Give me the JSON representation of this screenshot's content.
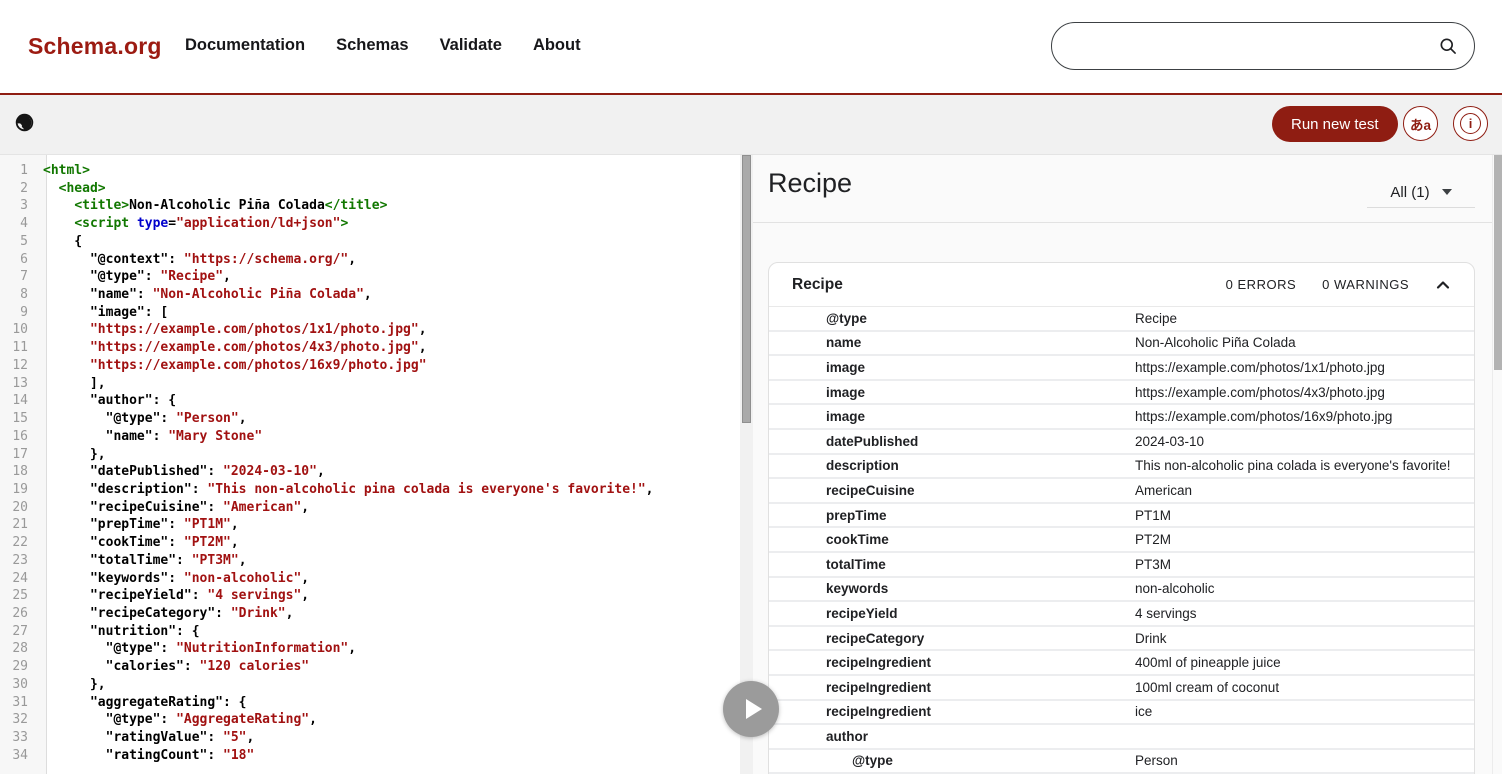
{
  "colors": {
    "accent_red": "#8f1d12",
    "logo_red": "#9c1b12",
    "toolbar_gray": "#f1f1f1",
    "results_bg": "#fafafa",
    "code_tag_green": "#117700",
    "code_attr_blue": "#0000cc",
    "code_string_red": "#a11111"
  },
  "header": {
    "logo": "Schema.org",
    "nav_items": [
      "Documentation",
      "Schemas",
      "Validate",
      "About"
    ],
    "search": {
      "value": ""
    }
  },
  "toolbar": {
    "run_button_label": "Run new test",
    "language_button_label": "あa",
    "info_button_label": "i",
    "icons": [
      "globe-icon",
      "search-icon",
      "language-icon",
      "info-icon"
    ]
  },
  "editor": {
    "visible_line_count": 34,
    "lines": [
      [
        [
          "t",
          "<html>"
        ]
      ],
      [
        [
          "p",
          "  "
        ],
        [
          "t",
          "<head>"
        ]
      ],
      [
        [
          "p",
          "    "
        ],
        [
          "t",
          "<title>"
        ],
        [
          "p",
          "Non-Alcoholic Piña Colada"
        ],
        [
          "t",
          "</title>"
        ]
      ],
      [
        [
          "p",
          "    "
        ],
        [
          "t",
          "<script"
        ],
        [
          "p",
          " "
        ],
        [
          "a",
          "type"
        ],
        [
          "p",
          "="
        ],
        [
          "s",
          "\"application/ld+json\""
        ],
        [
          "t",
          ">"
        ]
      ],
      [
        [
          "p",
          "    {"
        ]
      ],
      [
        [
          "p",
          "      \"@context\": "
        ],
        [
          "s",
          "\"https://schema.org/\""
        ],
        [
          "p",
          ","
        ]
      ],
      [
        [
          "p",
          "      \"@type\": "
        ],
        [
          "s",
          "\"Recipe\""
        ],
        [
          "p",
          ","
        ]
      ],
      [
        [
          "p",
          "      \"name\": "
        ],
        [
          "s",
          "\"Non-Alcoholic Piña Colada\""
        ],
        [
          "p",
          ","
        ]
      ],
      [
        [
          "p",
          "      \"image\": ["
        ]
      ],
      [
        [
          "p",
          "      "
        ],
        [
          "s",
          "\"https://example.com/photos/1x1/photo.jpg\""
        ],
        [
          "p",
          ","
        ]
      ],
      [
        [
          "p",
          "      "
        ],
        [
          "s",
          "\"https://example.com/photos/4x3/photo.jpg\""
        ],
        [
          "p",
          ","
        ]
      ],
      [
        [
          "p",
          "      "
        ],
        [
          "s",
          "\"https://example.com/photos/16x9/photo.jpg\""
        ]
      ],
      [
        [
          "p",
          "      ],"
        ]
      ],
      [
        [
          "p",
          "      \"author\": {"
        ]
      ],
      [
        [
          "p",
          "        \"@type\": "
        ],
        [
          "s",
          "\"Person\""
        ],
        [
          "p",
          ","
        ]
      ],
      [
        [
          "p",
          "        \"name\": "
        ],
        [
          "s",
          "\"Mary Stone\""
        ]
      ],
      [
        [
          "p",
          "      },"
        ]
      ],
      [
        [
          "p",
          "      \"datePublished\": "
        ],
        [
          "s",
          "\"2024-03-10\""
        ],
        [
          "p",
          ","
        ]
      ],
      [
        [
          "p",
          "      \"description\": "
        ],
        [
          "s",
          "\"This non-alcoholic pina colada is everyone's favorite!\""
        ],
        [
          "p",
          ","
        ]
      ],
      [
        [
          "p",
          "      \"recipeCuisine\": "
        ],
        [
          "s",
          "\"American\""
        ],
        [
          "p",
          ","
        ]
      ],
      [
        [
          "p",
          "      \"prepTime\": "
        ],
        [
          "s",
          "\"PT1M\""
        ],
        [
          "p",
          ","
        ]
      ],
      [
        [
          "p",
          "      \"cookTime\": "
        ],
        [
          "s",
          "\"PT2M\""
        ],
        [
          "p",
          ","
        ]
      ],
      [
        [
          "p",
          "      \"totalTime\": "
        ],
        [
          "s",
          "\"PT3M\""
        ],
        [
          "p",
          ","
        ]
      ],
      [
        [
          "p",
          "      \"keywords\": "
        ],
        [
          "s",
          "\"non-alcoholic\""
        ],
        [
          "p",
          ","
        ]
      ],
      [
        [
          "p",
          "      \"recipeYield\": "
        ],
        [
          "s",
          "\"4 servings\""
        ],
        [
          "p",
          ","
        ]
      ],
      [
        [
          "p",
          "      \"recipeCategory\": "
        ],
        [
          "s",
          "\"Drink\""
        ],
        [
          "p",
          ","
        ]
      ],
      [
        [
          "p",
          "      \"nutrition\": {"
        ]
      ],
      [
        [
          "p",
          "        \"@type\": "
        ],
        [
          "s",
          "\"NutritionInformation\""
        ],
        [
          "p",
          ","
        ]
      ],
      [
        [
          "p",
          "        \"calories\": "
        ],
        [
          "s",
          "\"120 calories\""
        ]
      ],
      [
        [
          "p",
          "      },"
        ]
      ],
      [
        [
          "p",
          "      \"aggregateRating\": {"
        ]
      ],
      [
        [
          "p",
          "        \"@type\": "
        ],
        [
          "s",
          "\"AggregateRating\""
        ],
        [
          "p",
          ","
        ]
      ],
      [
        [
          "p",
          "        \"ratingValue\": "
        ],
        [
          "s",
          "\"5\""
        ],
        [
          "p",
          ","
        ]
      ],
      [
        [
          "p",
          "        \"ratingCount\": "
        ],
        [
          "s",
          "\"18\""
        ]
      ]
    ]
  },
  "results": {
    "heading": "Recipe",
    "filter_label": "All (1)",
    "card": {
      "title": "Recipe",
      "errors_label": "0 ERRORS",
      "warnings_label": "0 WARNINGS",
      "rows": [
        {
          "property": "@type",
          "value": "Recipe",
          "indent": 0
        },
        {
          "property": "name",
          "value": "Non-Alcoholic Piña Colada",
          "indent": 0
        },
        {
          "property": "image",
          "value": "https://example.com/photos/1x1/photo.jpg",
          "indent": 0
        },
        {
          "property": "image",
          "value": "https://example.com/photos/4x3/photo.jpg",
          "indent": 0
        },
        {
          "property": "image",
          "value": "https://example.com/photos/16x9/photo.jpg",
          "indent": 0
        },
        {
          "property": "datePublished",
          "value": "2024-03-10",
          "indent": 0
        },
        {
          "property": "description",
          "value": "This non-alcoholic pina colada is everyone's favorite!",
          "indent": 0
        },
        {
          "property": "recipeCuisine",
          "value": "American",
          "indent": 0
        },
        {
          "property": "prepTime",
          "value": "PT1M",
          "indent": 0
        },
        {
          "property": "cookTime",
          "value": "PT2M",
          "indent": 0
        },
        {
          "property": "totalTime",
          "value": "PT3M",
          "indent": 0
        },
        {
          "property": "keywords",
          "value": "non-alcoholic",
          "indent": 0
        },
        {
          "property": "recipeYield",
          "value": "4 servings",
          "indent": 0
        },
        {
          "property": "recipeCategory",
          "value": "Drink",
          "indent": 0
        },
        {
          "property": "recipeIngredient",
          "value": "400ml of pineapple juice",
          "indent": 0
        },
        {
          "property": "recipeIngredient",
          "value": "100ml cream of coconut",
          "indent": 0
        },
        {
          "property": "recipeIngredient",
          "value": "ice",
          "indent": 0
        },
        {
          "property": "author",
          "value": "",
          "indent": 0
        },
        {
          "property": "@type",
          "value": "Person",
          "indent": 1
        }
      ]
    }
  }
}
